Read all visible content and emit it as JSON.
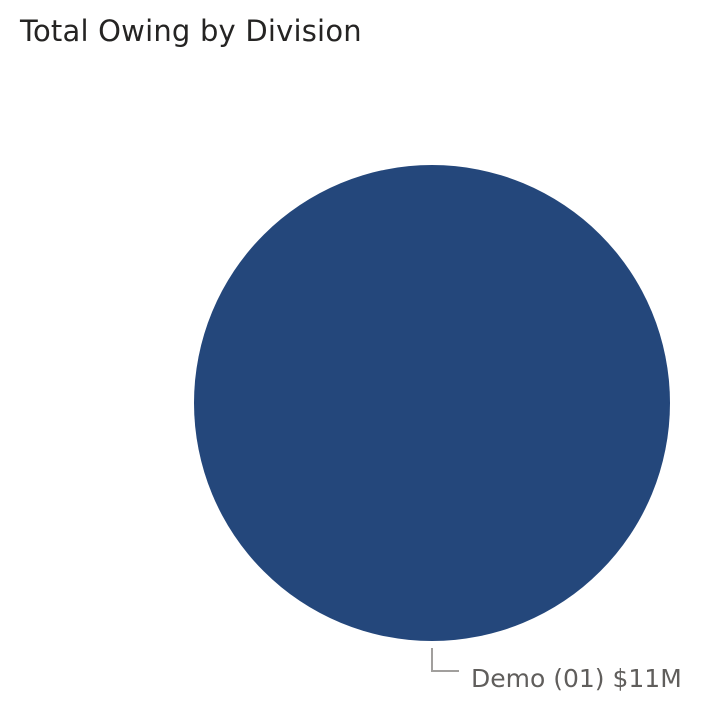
{
  "colors": {
    "background": "#ffffff",
    "title": "#252423",
    "label": "#605e5c",
    "leader_line": "#a19f9d"
  },
  "chart_data": {
    "type": "pie",
    "title": "Total Owing by Division",
    "series": [
      {
        "category": "Demo (01)",
        "value": 11,
        "value_label": "$11M",
        "color": "#24477b"
      }
    ],
    "data_labels": [
      "Demo (01) $11M"
    ],
    "legend": "none"
  }
}
